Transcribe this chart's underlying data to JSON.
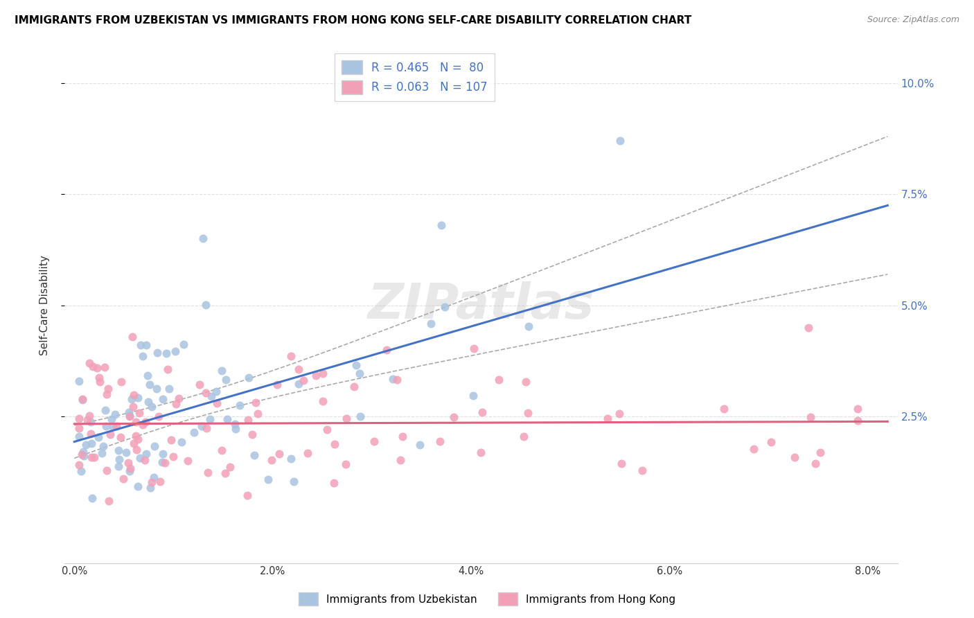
{
  "title": "IMMIGRANTS FROM UZBEKISTAN VS IMMIGRANTS FROM HONG KONG SELF-CARE DISABILITY CORRELATION CHART",
  "source": "Source: ZipAtlas.com",
  "ylabel": "Self-Care Disability",
  "x_tick_values": [
    0.0,
    0.02,
    0.04,
    0.06,
    0.08
  ],
  "y_tick_values": [
    0.025,
    0.05,
    0.075,
    0.1
  ],
  "xlim": [
    -0.001,
    0.083
  ],
  "ylim": [
    -0.008,
    0.108
  ],
  "color_uzbekistan": "#a8c4e0",
  "color_hong_kong": "#f2a0b8",
  "line_color_uzbekistan": "#4472c4",
  "line_color_hong_kong": "#e06080",
  "dashed_color": "#aaaaaa",
  "grid_color": "#e0e0e0",
  "R_uzbekistan": 0.465,
  "N_uzbekistan": 80,
  "R_hong_kong": 0.063,
  "N_hong_kong": 107,
  "legend_label_uzbekistan": "Immigrants from Uzbekistan",
  "legend_label_hong_kong": "Immigrants from Hong Kong",
  "watermark": "ZIPatlas",
  "seed_uz": 7,
  "seed_hk": 13
}
